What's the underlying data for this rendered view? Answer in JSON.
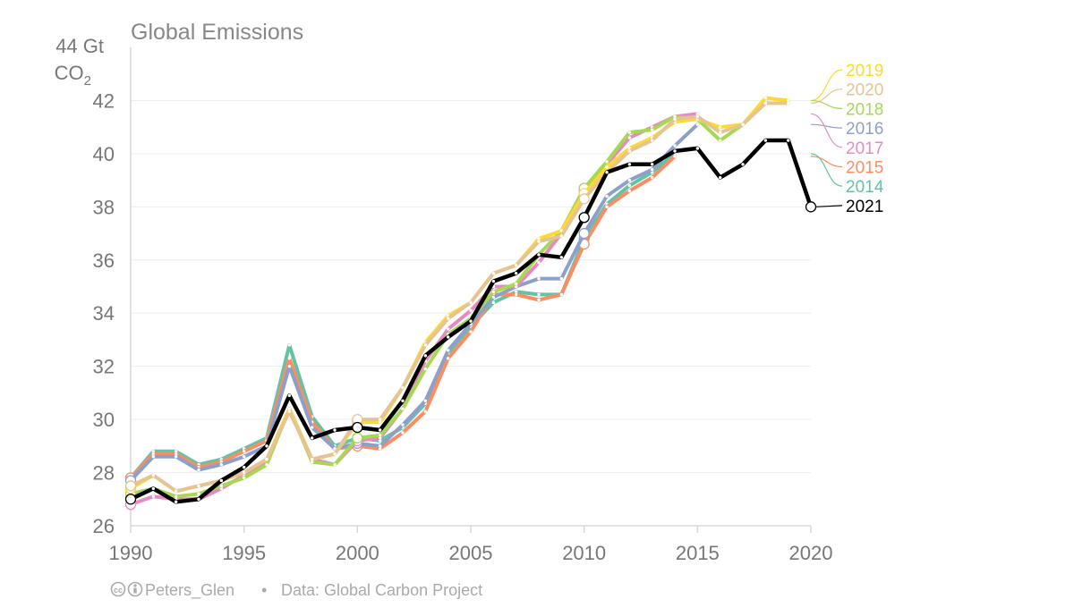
{
  "chart_data": {
    "type": "line",
    "title": "Global Emissions",
    "ylabel": "44 Gt",
    "ylabel_unit": "CO",
    "ylabel_subscript": "2",
    "xlim": [
      1990,
      2020
    ],
    "ylim": [
      26,
      44
    ],
    "xticks": [
      "1990",
      "1995",
      "2000",
      "2005",
      "2010",
      "2015",
      "2020"
    ],
    "yticks": [
      "42",
      "40",
      "38",
      "36",
      "34",
      "32",
      "30",
      "28",
      "26"
    ],
    "grid": true,
    "legend_position": "right",
    "series": [
      {
        "name": "2014",
        "color": "#66C2A5",
        "start": 1990,
        "values": [
          27.8,
          28.8,
          28.8,
          28.3,
          28.5,
          28.9,
          29.3,
          32.8,
          30.1,
          29.0,
          29.3,
          29.2,
          29.7,
          30.6,
          32.5,
          33.5,
          34.4,
          34.8,
          34.7,
          34.7,
          36.8,
          38.1,
          38.8,
          39.3,
          40.0
        ]
      },
      {
        "name": "2015",
        "color": "#FC8D62",
        "start": 1990,
        "values": [
          27.8,
          28.7,
          28.7,
          28.2,
          28.4,
          28.8,
          29.2,
          32.3,
          29.9,
          28.9,
          29.0,
          28.9,
          29.5,
          30.3,
          32.3,
          33.3,
          34.7,
          34.7,
          34.5,
          34.7,
          36.6,
          38.0,
          38.6,
          39.1,
          39.9
        ]
      },
      {
        "name": "2016",
        "color": "#8DA0CB",
        "start": 1990,
        "values": [
          27.7,
          28.6,
          28.6,
          28.1,
          28.3,
          28.6,
          29.0,
          32.0,
          29.7,
          28.9,
          29.1,
          29.0,
          29.8,
          30.7,
          32.6,
          33.6,
          34.6,
          35.0,
          35.3,
          35.3,
          37.0,
          38.4,
          39.0,
          39.4,
          40.3,
          41.1
        ]
      },
      {
        "name": "2017",
        "color": "#E78AC3",
        "start": 1990,
        "values": [
          26.8,
          27.1,
          27.0,
          27.0,
          27.4,
          27.9,
          28.4,
          30.4,
          28.5,
          28.3,
          29.2,
          29.3,
          30.4,
          32.2,
          33.4,
          34.1,
          35.0,
          35.0,
          35.9,
          37.0,
          38.6,
          39.6,
          40.6,
          41.0,
          41.4,
          41.5
        ]
      },
      {
        "name": "2018",
        "color": "#A6D854",
        "start": 1990,
        "values": [
          27.2,
          27.4,
          27.1,
          27.2,
          27.5,
          27.8,
          28.3,
          30.4,
          28.4,
          28.3,
          29.3,
          29.4,
          30.4,
          31.9,
          33.2,
          33.8,
          34.8,
          35.1,
          36.2,
          37.1,
          38.7,
          39.7,
          40.8,
          40.9,
          41.4,
          41.3,
          40.5,
          41.1,
          42.0
        ]
      },
      {
        "name": "2019",
        "color": "#FFD92F",
        "start": 1990,
        "values": [
          27.4,
          27.9,
          27.3,
          27.5,
          27.7,
          28.0,
          28.5,
          30.4,
          28.5,
          28.7,
          29.9,
          29.9,
          31.2,
          32.9,
          33.9,
          34.4,
          35.5,
          35.8,
          36.8,
          37.1,
          38.5,
          39.5,
          40.2,
          40.6,
          41.2,
          41.3,
          41.0,
          41.1,
          42.1,
          42.0
        ]
      },
      {
        "name": "2020",
        "color": "#E5C494",
        "start": 1990,
        "values": [
          27.5,
          27.9,
          27.3,
          27.5,
          27.7,
          28.0,
          28.5,
          30.3,
          28.5,
          28.7,
          30.0,
          30.0,
          31.2,
          32.8,
          33.8,
          34.4,
          35.5,
          35.8,
          36.7,
          36.9,
          38.3,
          39.3,
          40.1,
          40.5,
          41.3,
          41.4,
          40.8,
          41.1,
          41.9,
          41.9
        ]
      },
      {
        "name": "2021",
        "color": "#000000",
        "start": 1990,
        "values": [
          27.0,
          27.4,
          26.9,
          27.0,
          27.7,
          28.2,
          29.0,
          30.9,
          29.3,
          29.6,
          29.7,
          29.6,
          30.7,
          32.4,
          33.1,
          33.7,
          35.2,
          35.5,
          36.2,
          36.1,
          37.6,
          39.3,
          39.6,
          39.6,
          40.1,
          40.2,
          39.1,
          39.6,
          40.5,
          40.5,
          38.0
        ]
      }
    ],
    "legend_order": [
      "2019",
      "2020",
      "2018",
      "2016",
      "2017",
      "2015",
      "2014",
      "2021"
    ],
    "highlight_points": [
      1990,
      2000,
      2010,
      2020
    ],
    "footer_author": "Peters_Glen",
    "footer_sep": "•",
    "footer_source": "Data: Global Carbon Project",
    "cc_icon": "cc-by-icon"
  }
}
